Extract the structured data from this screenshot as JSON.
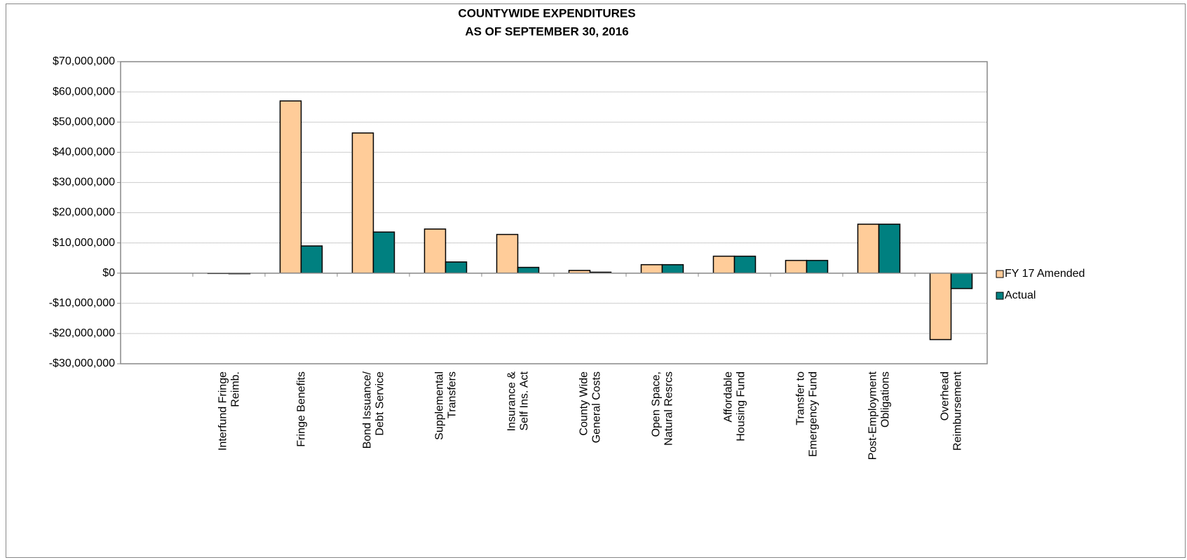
{
  "chart_data": {
    "type": "bar",
    "title": "COUNTYWIDE EXPENDITURES",
    "subtitle": "AS OF SEPTEMBER 30, 2016",
    "categories": [
      null,
      "Interfund Fringe\nReimb.",
      "Fringe Benefits",
      "Bond Issuance/\nDebt Service",
      "Supplemental\nTransfers",
      "Insurance &\nSelf Ins. Act",
      "County Wide\nGeneral Costs",
      "Open Space,\nNatural Resrcs",
      "Affordable\nHousing Fund",
      "Transfer to\nEmergency Fund",
      "Post-Employment\nObligations",
      "Overhead\nReimbursement"
    ],
    "series": [
      {
        "name": "FY 17 Amended",
        "color": "#ffcc99",
        "values": [
          null,
          0,
          57000000,
          46400000,
          14600000,
          12800000,
          900000,
          2800000,
          5600000,
          4200000,
          16200000,
          -22000000
        ]
      },
      {
        "name": "Actual",
        "color": "#008080",
        "values": [
          null,
          -200000,
          9000000,
          13600000,
          3700000,
          1900000,
          300000,
          2800000,
          5600000,
          4200000,
          16200000,
          -5100000
        ]
      }
    ],
    "ylim": [
      -30000000,
      70000000
    ],
    "yticks": [
      {
        "value": -30000000,
        "label": "-$30,000,000"
      },
      {
        "value": -20000000,
        "label": "-$20,000,000"
      },
      {
        "value": -10000000,
        "label": "-$10,000,000"
      },
      {
        "value": 0,
        "label": "$0"
      },
      {
        "value": 10000000,
        "label": "$10,000,000"
      },
      {
        "value": 20000000,
        "label": "$20,000,000"
      },
      {
        "value": 30000000,
        "label": "$30,000,000"
      },
      {
        "value": 40000000,
        "label": "$40,000,000"
      },
      {
        "value": 50000000,
        "label": "$50,000,000"
      },
      {
        "value": 60000000,
        "label": "$60,000,000"
      },
      {
        "value": 70000000,
        "label": "$70,000,000"
      }
    ],
    "grid": true,
    "legend": "right"
  }
}
